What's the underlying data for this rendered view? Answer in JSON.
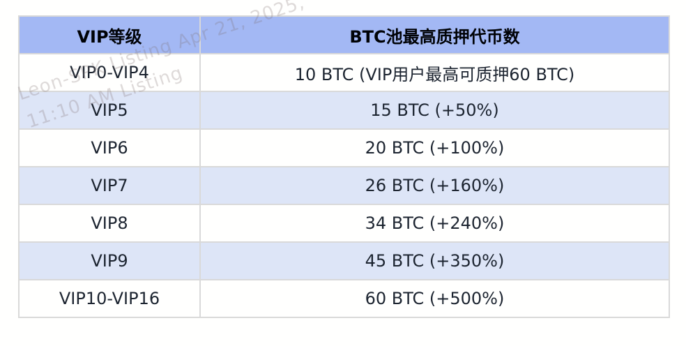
{
  "table": {
    "headers": [
      "VIP等级",
      "BTC池最高质押代币数"
    ],
    "rows": [
      {
        "level": "VIP0-VIP4",
        "limit": "10 BTC (VIP用户最高可质押60 BTC)"
      },
      {
        "level": "VIP5",
        "limit": "15 BTC (+50%)"
      },
      {
        "level": "VIP6",
        "limit": "20 BTC (+100%)"
      },
      {
        "level": "VIP7",
        "limit": "26 BTC (+160%)"
      },
      {
        "level": "VIP8",
        "limit": "34 BTC (+240%)"
      },
      {
        "level": "VIP9",
        "limit": "45 BTC (+350%)"
      },
      {
        "level": "VIP10-VIP16",
        "limit": "60 BTC (+500%)"
      }
    ]
  },
  "watermark": {
    "line1": "Leon-SPK Listing Apr 21, 2025,",
    "line2": "11:10 AM Listing"
  },
  "colors": {
    "header_bg": "#a3b8f4",
    "alt_row_bg": "#dde5f7",
    "row_bg": "#fffffe",
    "border": "#d9d9d9",
    "text": "#1c2430"
  }
}
